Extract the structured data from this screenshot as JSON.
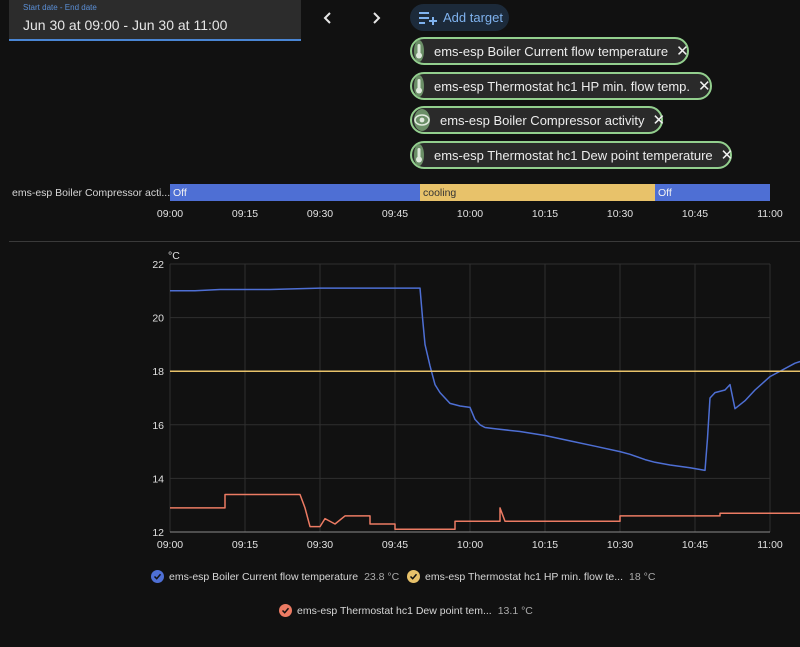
{
  "date_picker": {
    "label": "Start date - End date",
    "value": "Jun 30 at 09:00 - Jun 30 at 11:00"
  },
  "nav": {
    "prev_icon": "chevron-left-icon",
    "next_icon": "chevron-right-icon"
  },
  "add_target": {
    "label": "Add target",
    "icon": "playlist-add-icon"
  },
  "targets": [
    {
      "label": "ems-esp Boiler Current flow temperature",
      "icon": "thermometer-icon"
    },
    {
      "label": "ems-esp Thermostat hc1 HP min. flow temp.",
      "icon": "thermometer-icon"
    },
    {
      "label": "ems-esp Boiler Compressor activity",
      "icon": "eye-icon"
    },
    {
      "label": "ems-esp Thermostat hc1 Dew point temperature",
      "icon": "thermometer-icon"
    }
  ],
  "colors": {
    "accent": "#4a86d4",
    "chip_border": "#93cf8e",
    "blue": "#4e6fd4",
    "orange": "#e8c26a",
    "salmon": "#ec7b63",
    "bg": "#111111"
  },
  "chart_data": [
    {
      "type": "timeline",
      "row_label": "ems-esp Boiler Compressor acti...",
      "segments": [
        {
          "label": "Off",
          "start": "09:00",
          "end": "09:50",
          "color": "#4e6fd4"
        },
        {
          "label": "cooling",
          "start": "09:50",
          "end": "10:37",
          "color": "#e8c26a"
        },
        {
          "label": "Off",
          "start": "10:37",
          "end": "11:00",
          "color": "#4e6fd4"
        }
      ],
      "x_ticks": [
        "09:00",
        "09:15",
        "09:30",
        "09:45",
        "10:00",
        "10:15",
        "10:30",
        "10:45",
        "11:00"
      ]
    },
    {
      "type": "line",
      "unit": "°C",
      "ylim": [
        12,
        22
      ],
      "y_ticks": [
        12,
        14,
        16,
        18,
        20,
        22
      ],
      "x_ticks": [
        "09:00",
        "09:15",
        "09:30",
        "09:45",
        "10:00",
        "10:15",
        "10:30",
        "10:45",
        "11:00"
      ],
      "grid": true,
      "series": [
        {
          "name": "ems-esp Boiler Current flow temperature",
          "value_label": "23.8 °C",
          "color": "#4e6fd4",
          "points": [
            [
              0,
              21
            ],
            [
              5,
              21
            ],
            [
              10,
              21.05
            ],
            [
              20,
              21.05
            ],
            [
              30,
              21.1
            ],
            [
              40,
              21.1
            ],
            [
              50,
              21.1
            ],
            [
              50.5,
              20
            ],
            [
              51,
              19
            ],
            [
              52,
              18.2
            ],
            [
              53,
              17.5
            ],
            [
              54,
              17.2
            ],
            [
              55,
              17
            ],
            [
              56,
              16.8
            ],
            [
              58,
              16.7
            ],
            [
              60,
              16.65
            ],
            [
              61,
              16.2
            ],
            [
              62,
              16
            ],
            [
              63,
              15.9
            ],
            [
              65,
              15.85
            ],
            [
              70,
              15.75
            ],
            [
              75,
              15.6
            ],
            [
              80,
              15.4
            ],
            [
              85,
              15.2
            ],
            [
              90,
              15
            ],
            [
              92,
              14.9
            ],
            [
              95,
              14.7
            ],
            [
              97,
              14.6
            ],
            [
              100,
              14.5
            ],
            [
              104,
              14.4
            ],
            [
              107,
              14.3
            ],
            [
              107.5,
              15.5
            ],
            [
              108,
              17
            ],
            [
              109,
              17.2
            ],
            [
              111,
              17.3
            ],
            [
              112,
              17.5
            ],
            [
              113,
              16.6
            ],
            [
              115,
              16.9
            ],
            [
              117,
              17.3
            ],
            [
              120,
              17.8
            ],
            [
              125,
              18.3
            ],
            [
              130,
              18.6
            ],
            [
              135,
              18.9
            ],
            [
              140,
              19.2
            ],
            [
              144,
              19.3
            ]
          ]
        },
        {
          "name": "ems-esp Thermostat hc1 HP min. flow te...",
          "value_label": "18 °C",
          "color": "#e8c26a",
          "points": [
            [
              0,
              18
            ],
            [
              144,
              18
            ]
          ]
        },
        {
          "name": "ems-esp Thermostat hc1 Dew point tem...",
          "value_label": "13.1 °C",
          "color": "#ec7b63",
          "points": [
            [
              0,
              12.9
            ],
            [
              11,
              12.9
            ],
            [
              11,
              13.4
            ],
            [
              26,
              13.4
            ],
            [
              27,
              12.9
            ],
            [
              28,
              12.2
            ],
            [
              30,
              12.2
            ],
            [
              31,
              12.5
            ],
            [
              33,
              12.3
            ],
            [
              35,
              12.6
            ],
            [
              40,
              12.6
            ],
            [
              40,
              12.3
            ],
            [
              45,
              12.3
            ],
            [
              45,
              12.1
            ],
            [
              57,
              12.1
            ],
            [
              57,
              12.4
            ],
            [
              66,
              12.4
            ],
            [
              66,
              12.9
            ],
            [
              67,
              12.4
            ],
            [
              90,
              12.4
            ],
            [
              90,
              12.6
            ],
            [
              110,
              12.6
            ],
            [
              110,
              12.7
            ],
            [
              131,
              12.7
            ],
            [
              131,
              12.9
            ],
            [
              141,
              12.9
            ],
            [
              142,
              12.6
            ],
            [
              143,
              12.9
            ],
            [
              144,
              12.9
            ]
          ]
        }
      ]
    }
  ]
}
